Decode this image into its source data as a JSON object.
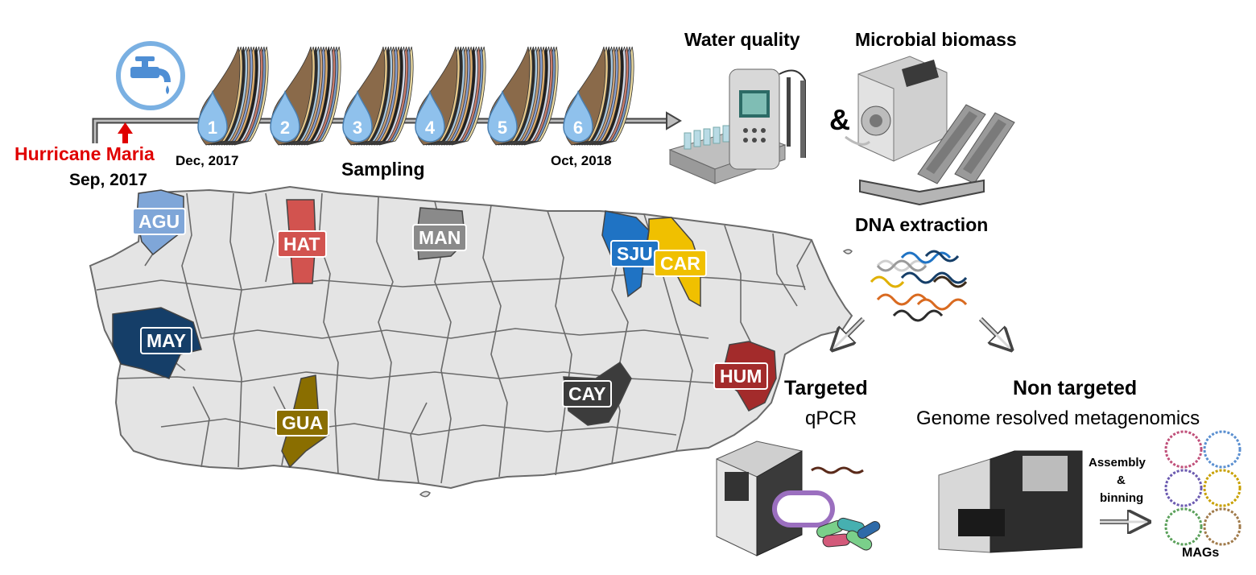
{
  "timeline": {
    "event": "Hurricane Maria",
    "event_date": "Sep, 2017",
    "start_date": "Dec, 2017",
    "end_date": "Oct, 2018",
    "label": "Sampling",
    "sampling_events": [
      "1",
      "2",
      "3",
      "4",
      "5",
      "6"
    ]
  },
  "top_right": {
    "water_quality": "Water quality",
    "microbial_biomass": "Microbial biomass",
    "ampersand": "&"
  },
  "pipeline": {
    "dna_extraction": "DNA extraction",
    "targeted_title": "Targeted",
    "targeted_method": "qPCR",
    "nontargeted_title": "Non targeted",
    "nontargeted_method": "Genome resolved metagenomics",
    "assembly_line1": "Assembly",
    "assembly_line2": "&",
    "assembly_line3": "binning",
    "mags": "MAGs"
  },
  "sites": [
    {
      "code": "AGU",
      "color": "#7fa6d8"
    },
    {
      "code": "HAT",
      "color": "#d2534f"
    },
    {
      "code": "MAN",
      "color": "#8a8a8a"
    },
    {
      "code": "SJU",
      "color": "#1f73c4"
    },
    {
      "code": "CAR",
      "color": "#f0c000"
    },
    {
      "code": "MAY",
      "color": "#153e68"
    },
    {
      "code": "HUM",
      "color": "#a32b2b"
    },
    {
      "code": "CAY",
      "color": "#3c3c3c"
    },
    {
      "code": "GUA",
      "color": "#8a6e00"
    }
  ],
  "colors": {
    "hurricane": "#e00000",
    "drop_blue": "#8fc1ec",
    "map_fill": "#e4e4e4",
    "map_stroke": "#6a6a6a"
  }
}
